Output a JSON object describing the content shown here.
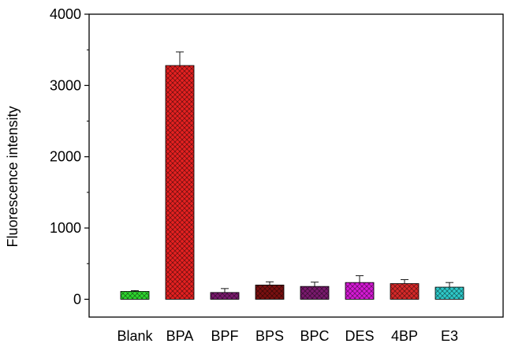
{
  "chart_data": {
    "type": "bar",
    "title": "",
    "xlabel": "",
    "ylabel": "Fluorescence intensity",
    "ylim": [
      -250,
      4000
    ],
    "yticks": [
      0,
      1000,
      2000,
      3000,
      4000
    ],
    "grid": false,
    "legend": "none",
    "categories": [
      "Blank",
      "BPA",
      "BPF",
      "BPS",
      "BPC",
      "DES",
      "4BP",
      "E3"
    ],
    "values": [
      110,
      3280,
      95,
      200,
      180,
      235,
      220,
      170
    ],
    "errors": [
      12,
      190,
      55,
      45,
      60,
      95,
      55,
      65
    ],
    "colors": [
      "#2fd62f",
      "#e52121",
      "#7a1a6e",
      "#7a1010",
      "#7a1a6e",
      "#d61ad6",
      "#d62a2a",
      "#2fcaca"
    ],
    "pattern": "crosshatch"
  }
}
